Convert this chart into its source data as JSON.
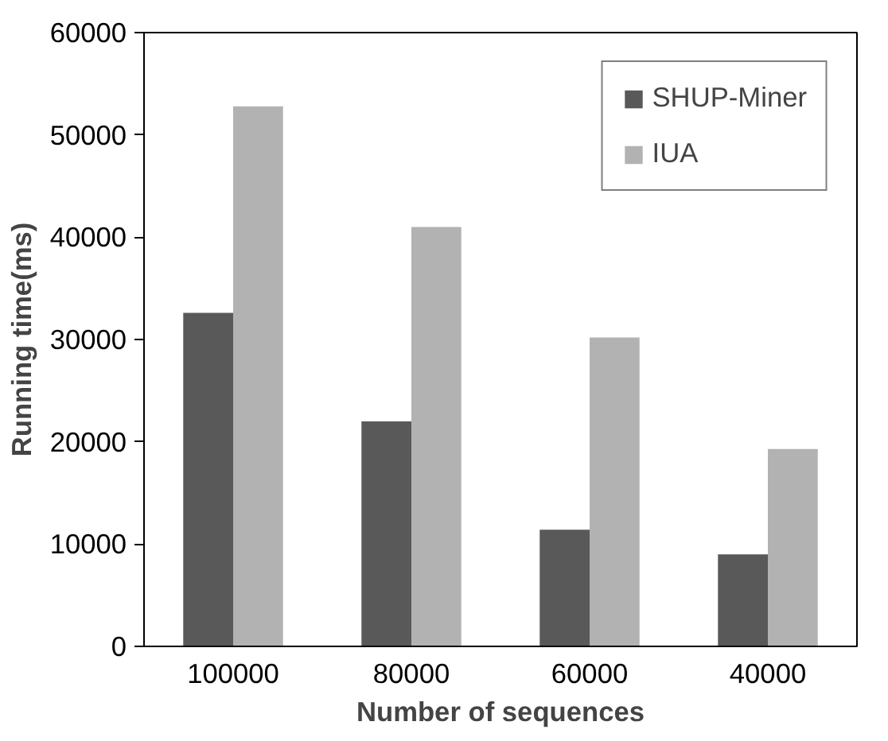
{
  "chart_data": {
    "type": "bar",
    "xlabel": "Number of sequences",
    "ylabel": "Running time(ms)",
    "categories": [
      "100000",
      "80000",
      "60000",
      "40000"
    ],
    "series": [
      {
        "name": "SHUP-Miner",
        "color": "#595959",
        "values": [
          32600,
          22000,
          11400,
          9000
        ]
      },
      {
        "name": "IUA",
        "color": "#b2b2b2",
        "values": [
          52800,
          41000,
          30200,
          19300
        ]
      }
    ],
    "ylim": [
      0,
      60000
    ],
    "yticks": [
      0,
      10000,
      20000,
      30000,
      40000,
      50000,
      60000
    ],
    "grid": false,
    "legend": "top right"
  }
}
